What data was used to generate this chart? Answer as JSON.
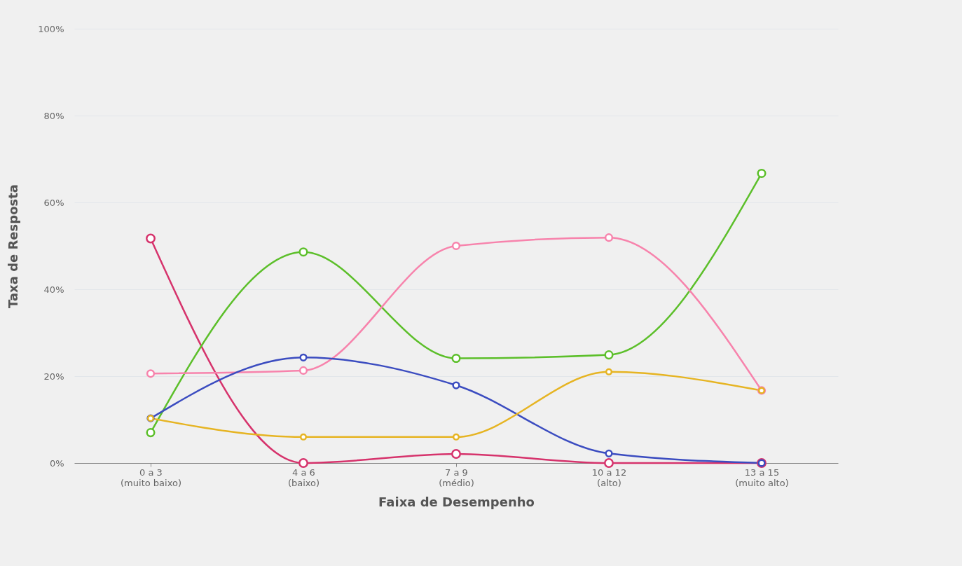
{
  "chart_data": {
    "type": "line",
    "xlabel": "Faixa de Desempenho",
    "ylabel": "Taxa de Resposta",
    "categories": [
      "0 a 3\n(muito baixo)",
      "4 a 6\n(baixo)",
      "7 a 9\n(médio)",
      "10 a 12\n(alto)",
      "13 a 15\n(muito alto)"
    ],
    "series": [
      {
        "color": "#d6336c",
        "values": [
          51.7,
          0,
          2.1,
          0,
          0
        ]
      },
      {
        "color": "#5cbf2a",
        "values": [
          7.0,
          48.6,
          24.1,
          24.9,
          66.7
        ]
      },
      {
        "color": "#f783ac",
        "values": [
          20.6,
          21.3,
          50,
          51.9,
          16.7
        ]
      },
      {
        "color": "#3b4cc0",
        "values": [
          10.3,
          24.3,
          17.9,
          2.2,
          0
        ]
      },
      {
        "color": "#e6b422",
        "values": [
          10.3,
          6.0,
          6.0,
          21.0,
          16.7
        ]
      }
    ],
    "ylim": [
      0,
      100
    ],
    "yticks": [
      {
        "value": 0,
        "label": "0%"
      },
      {
        "value": 20,
        "label": "20%"
      },
      {
        "value": 40,
        "label": "40%"
      },
      {
        "value": 60,
        "label": "60%"
      },
      {
        "value": 80,
        "label": "80%"
      },
      {
        "value": 100,
        "label": "100%"
      }
    ],
    "grid": "y",
    "legend": false,
    "marker": "circle",
    "line_style": "solid"
  }
}
